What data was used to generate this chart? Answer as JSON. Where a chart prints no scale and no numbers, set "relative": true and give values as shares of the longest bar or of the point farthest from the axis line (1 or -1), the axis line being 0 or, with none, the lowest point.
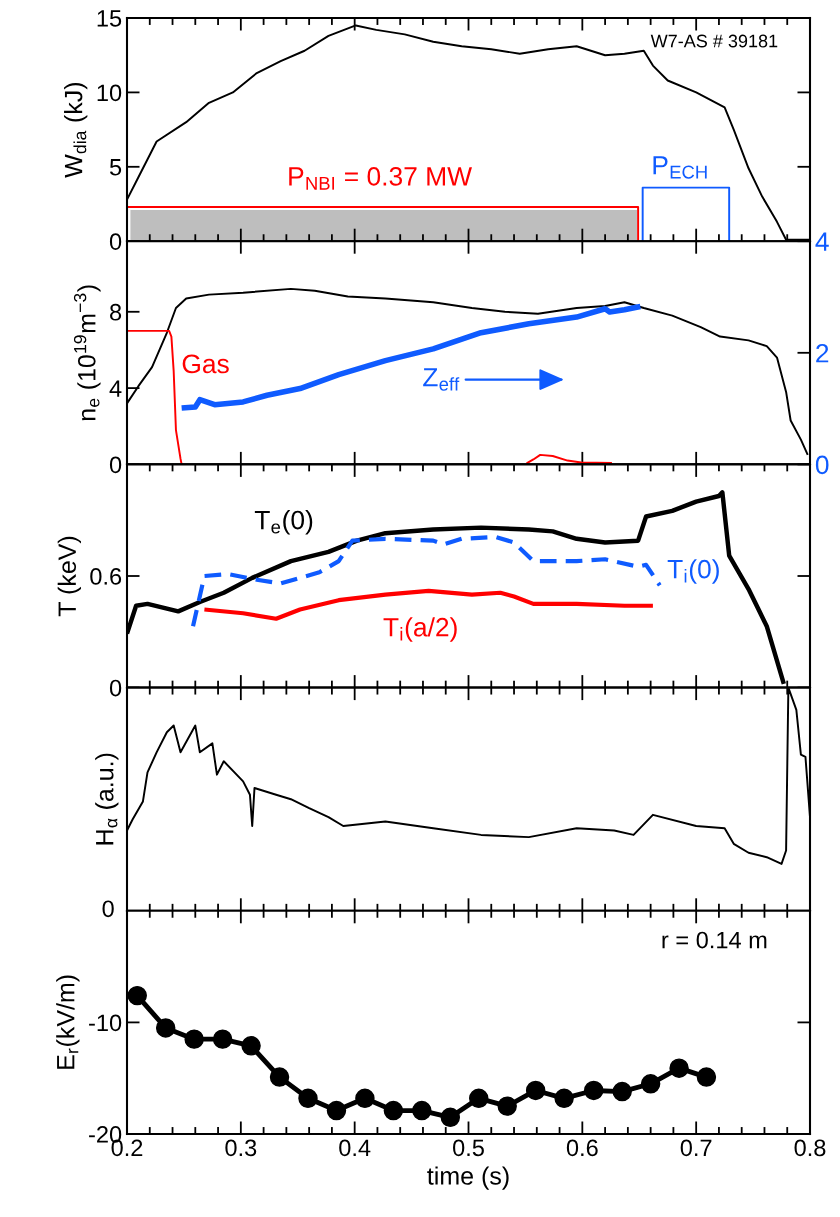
{
  "chart_data": [
    {
      "type": "line",
      "ylabel": "W$_{dia}$ (kJ)",
      "xlim": [
        0.2,
        0.8
      ],
      "xticks": [
        0.2,
        0.3,
        0.4,
        0.5,
        0.6,
        0.7,
        0.8
      ],
      "ylim": [
        0,
        15
      ],
      "yticks": [
        0,
        5,
        10,
        15
      ],
      "tick_labels": "y",
      "annotations": [
        "W7-AS # 39181"
      ],
      "series": [
        {
          "color": "#000000",
          "x": [
            0.2,
            0.21,
            0.226,
            0.252,
            0.272,
            0.293,
            0.314,
            0.335,
            0.356,
            0.377,
            0.401,
            0.419,
            0.444,
            0.469,
            0.494,
            0.52,
            0.545,
            0.57,
            0.595,
            0.62,
            0.637,
            0.654,
            0.662,
            0.675,
            0.7,
            0.725,
            0.733,
            0.746,
            0.758,
            0.771,
            0.779,
            0.8
          ],
          "values": [
            2.8,
            4.3,
            6.7,
            8.0,
            9.3,
            10.0,
            11.3,
            12.1,
            12.8,
            13.8,
            14.5,
            14.2,
            13.9,
            13.4,
            13.1,
            12.9,
            12.6,
            12.9,
            13.1,
            12.5,
            12.6,
            12.8,
            11.8,
            10.8,
            10.0,
            9.0,
            7.5,
            4.9,
            3.0,
            1.3,
            0.1,
            0.1
          ]
        },
        {
          "type": "area",
          "color": "#bebebe",
          "x": [
            0.203,
            0.648
          ],
          "values": [
            2.1,
            2.1
          ]
        },
        {
          "name": "P$_{NBI}$ = 0.37 MW",
          "color": "#ff0000",
          "x": [
            0.2,
            0.2,
            0.649,
            0.649
          ],
          "values": [
            5,
            2.3,
            2.3,
            0
          ]
        },
        {
          "name": "P$_{ECH}$",
          "color": "#0f5bff",
          "x": [
            0.653,
            0.653,
            0.729,
            0.729
          ],
          "values": [
            0,
            3.6,
            3.6,
            0
          ]
        }
      ]
    },
    {
      "type": "line",
      "ylabel": "n$_{e}$ (10$^{19}$m$^{−3}$)",
      "xlim": [
        0.2,
        0.8
      ],
      "xticks": [
        0.2,
        0.3,
        0.4,
        0.5,
        0.6,
        0.7,
        0.8
      ],
      "ylim": [
        0,
        11.7
      ],
      "yticks": [
        0,
        4,
        8
      ],
      "y2lim": [
        0,
        4
      ],
      "y2ticks": [
        0,
        2,
        4
      ],
      "tick_labels": "y",
      "series": [
        {
          "color": "#000000",
          "x": [
            0.2,
            0.21,
            0.222,
            0.235,
            0.243,
            0.252,
            0.272,
            0.302,
            0.344,
            0.365,
            0.394,
            0.427,
            0.469,
            0.503,
            0.532,
            0.561,
            0.595,
            0.62,
            0.637,
            0.654,
            0.679,
            0.704,
            0.721,
            0.746,
            0.762,
            0.771,
            0.779,
            0.783,
            0.792,
            0.798
          ],
          "values": [
            3.2,
            4.1,
            5.1,
            6.9,
            8.2,
            8.7,
            8.9,
            9.0,
            9.2,
            9.1,
            8.8,
            8.7,
            8.5,
            8.2,
            8.0,
            7.9,
            8.2,
            8.3,
            8.5,
            8.2,
            7.8,
            7.2,
            6.7,
            6.5,
            6.2,
            5.6,
            3.8,
            2.3,
            1.3,
            0.5
          ]
        },
        {
          "name": "Gas",
          "color": "#ff0000",
          "x": [
            0.2,
            0.237,
            0.239,
            0.241,
            0.243,
            0.247,
            0.248,
            0.4,
            0.551,
            0.557,
            0.563,
            0.574,
            0.587,
            0.599,
            0.626
          ],
          "values": [
            7.0,
            7.0,
            6.7,
            4.9,
            1.8,
            0.3,
            0,
            null,
            0.05,
            0.26,
            0.5,
            0.44,
            0.2,
            0.1,
            0.08
          ]
        },
        {
          "name": "Z$_{eff}$",
          "axis": "y2",
          "color": "#0f5bff",
          "x": [
            0.248,
            0.26,
            0.264,
            0.277,
            0.302,
            0.323,
            0.352,
            0.386,
            0.427,
            0.469,
            0.511,
            0.553,
            0.595,
            0.62,
            0.624,
            0.637,
            0.651
          ],
          "values": [
            1.01,
            1.03,
            1.16,
            1.07,
            1.12,
            1.24,
            1.36,
            1.61,
            1.86,
            2.07,
            2.36,
            2.52,
            2.64,
            2.79,
            2.73,
            2.77,
            2.83
          ]
        }
      ]
    },
    {
      "type": "line",
      "ylabel": "T (keV)",
      "xlim": [
        0.2,
        0.8
      ],
      "xticks": [
        0.2,
        0.3,
        0.4,
        0.5,
        0.6,
        0.7,
        0.8
      ],
      "ylim": [
        0,
        1.2
      ],
      "yticks": [
        0,
        0.6
      ],
      "tick_labels": "y",
      "series": [
        {
          "name": "T$_{e}$(0)",
          "color": "#000000",
          "x": [
            0.2,
            0.208,
            0.218,
            0.245,
            0.264,
            0.285,
            0.31,
            0.344,
            0.377,
            0.402,
            0.427,
            0.469,
            0.511,
            0.553,
            0.574,
            0.595,
            0.62,
            0.649,
            0.656,
            0.679,
            0.7,
            0.72,
            0.723,
            0.729,
            0.746,
            0.762,
            0.777
          ],
          "values": [
            0.29,
            0.44,
            0.45,
            0.41,
            0.46,
            0.51,
            0.59,
            0.68,
            0.73,
            0.79,
            0.83,
            0.85,
            0.86,
            0.85,
            0.84,
            0.8,
            0.78,
            0.79,
            0.92,
            0.95,
            1.0,
            1.03,
            1.05,
            0.71,
            0.53,
            0.33,
            0.02
          ]
        },
        {
          "name": "T$_{i}$(0)",
          "color": "#0f5bff",
          "line_style": "dashed",
          "x": [
            0.258,
            0.268,
            0.289,
            0.314,
            0.335,
            0.369,
            0.386,
            0.398,
            0.427,
            0.469,
            0.478,
            0.494,
            0.524,
            0.54,
            0.557,
            0.595,
            0.62,
            0.649,
            0.656,
            0.668
          ],
          "values": [
            0.33,
            0.6,
            0.61,
            0.58,
            0.56,
            0.62,
            0.68,
            0.79,
            0.8,
            0.79,
            0.77,
            0.8,
            0.81,
            0.78,
            0.68,
            0.68,
            0.69,
            0.65,
            0.66,
            0.55
          ]
        },
        {
          "name": "T$_{i}$(a/2)",
          "color": "#ff0000",
          "x": [
            0.268,
            0.302,
            0.331,
            0.352,
            0.386,
            0.427,
            0.465,
            0.503,
            0.528,
            0.54,
            0.557,
            0.595,
            0.637,
            0.662
          ],
          "values": [
            0.42,
            0.4,
            0.37,
            0.42,
            0.47,
            0.5,
            0.52,
            0.5,
            0.51,
            0.49,
            0.45,
            0.45,
            0.44,
            0.44
          ]
        }
      ]
    },
    {
      "type": "line",
      "ylabel": "H$_{α}$ (a.u.)",
      "relative": true,
      "xlim": [
        0.2,
        0.8
      ],
      "xticks": [
        0.2,
        0.3,
        0.4,
        0.5,
        0.6,
        0.7,
        0.8
      ],
      "tick_labels": "y",
      "annotations": [
        "0"
      ],
      "series": [
        {
          "color": "#000000",
          "x": [
            0.2,
            0.205,
            0.214,
            0.218,
            0.226,
            0.235,
            0.241,
            0.247,
            0.26,
            0.264,
            0.275,
            0.279,
            0.285,
            0.302,
            0.308,
            0.31,
            0.312,
            0.331,
            0.344,
            0.36,
            0.377,
            0.39,
            0.427,
            0.469,
            0.511,
            0.553,
            0.595,
            0.628,
            0.645,
            0.662,
            0.7,
            0.725,
            0.733,
            0.746,
            0.762,
            0.775,
            0.779,
            0.781,
            0.788,
            0.792,
            0.796,
            0.8
          ],
          "values": [
            0.36,
            0.41,
            0.49,
            0.62,
            0.71,
            0.8,
            0.83,
            0.71,
            0.83,
            0.71,
            0.75,
            0.61,
            0.67,
            0.58,
            0.52,
            0.38,
            0.55,
            0.52,
            0.5,
            0.46,
            0.42,
            0.38,
            0.4,
            0.37,
            0.34,
            0.33,
            0.37,
            0.36,
            0.34,
            0.43,
            0.38,
            0.37,
            0.3,
            0.26,
            0.24,
            0.21,
            0.27,
            1.0,
            0.9,
            0.7,
            0.69,
            0.42
          ]
        }
      ]
    },
    {
      "type": "line",
      "ylabel": "E$_{r}$(kV/m)",
      "xlabel": "time (s)",
      "xlim": [
        0.2,
        0.8
      ],
      "xticks": [
        0.2,
        0.3,
        0.4,
        0.5,
        0.6,
        0.7,
        0.8
      ],
      "ylim": [
        -20,
        0
      ],
      "yticks": [
        -20,
        -10
      ],
      "marker": "circle",
      "annotations": [
        "r = 0.14 m"
      ],
      "series": [
        {
          "color": "#000000",
          "x": [
            0.209,
            0.234,
            0.259,
            0.284,
            0.309,
            0.334,
            0.359,
            0.384,
            0.409,
            0.434,
            0.459,
            0.484,
            0.509,
            0.534,
            0.559,
            0.584,
            0.61,
            0.635,
            0.66,
            0.685,
            0.709
          ],
          "values": [
            -7.6,
            -10.5,
            -11.5,
            -11.5,
            -12.1,
            -14.9,
            -16.8,
            -17.9,
            -16.8,
            -17.9,
            -17.9,
            -18.5,
            -16.8,
            -17.5,
            -16.1,
            -16.8,
            -16.1,
            -16.2,
            -15.5,
            -14.1,
            -14.9
          ]
        }
      ]
    }
  ]
}
